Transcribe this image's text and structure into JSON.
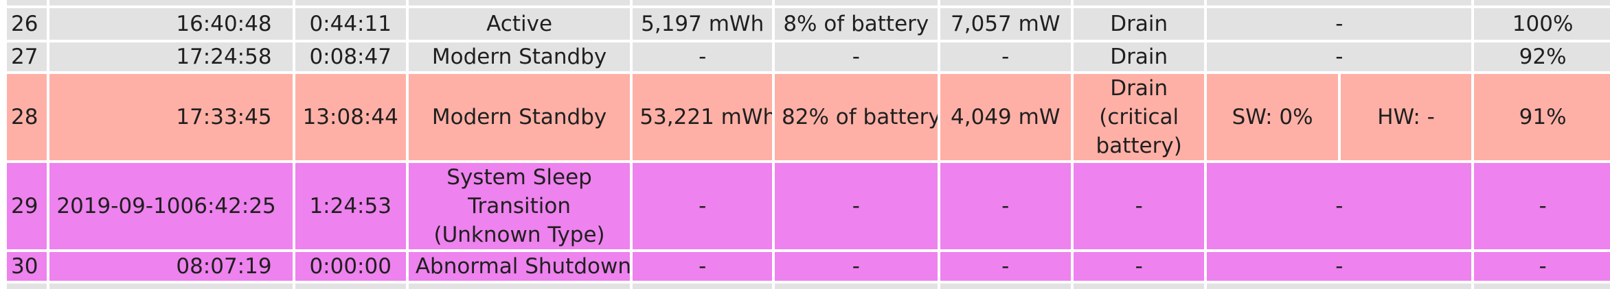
{
  "table": {
    "rows": [
      {
        "index": "26",
        "date": "",
        "time": "16:40:48",
        "duration": "0:44:11",
        "state": "Active",
        "energy": "5,197 mWh",
        "percent": "8% of battery",
        "rate": "7,057 mW",
        "source": "Drain",
        "sw": "-",
        "hw": "",
        "capacity": "100%",
        "color": "#e2e2e2"
      },
      {
        "index": "27",
        "date": "",
        "time": "17:24:58",
        "duration": "0:08:47",
        "state": "Modern Standby",
        "energy": "-",
        "percent": "-",
        "rate": "-",
        "source": "Drain",
        "sw": "-",
        "hw": "",
        "capacity": "92%",
        "color": "#e2e2e2"
      },
      {
        "index": "28",
        "date": "",
        "time": "17:33:45",
        "duration": "13:08:44",
        "state": "Modern Standby",
        "energy": "53,221 mWh",
        "percent": "82% of battery",
        "rate": "4,049 mW",
        "source": "Drain (critical battery)",
        "sw": "SW: 0%",
        "hw": "HW: -",
        "capacity": "91%",
        "color": "#ffb0a6"
      },
      {
        "index": "29",
        "date": "2019-09-10",
        "time": "06:42:25",
        "duration": "1:24:53",
        "state": "System Sleep Transition (Unknown Type)",
        "energy": "-",
        "percent": "-",
        "rate": "-",
        "source": "-",
        "sw": "-",
        "hw": "",
        "capacity": "-",
        "color": "#ee82ee"
      },
      {
        "index": "30",
        "date": "",
        "time": "08:07:19",
        "duration": "0:00:00",
        "state": "Abnormal Shutdown",
        "energy": "-",
        "percent": "-",
        "rate": "-",
        "source": "-",
        "sw": "-",
        "hw": "",
        "capacity": "-",
        "color": "#ee82ee"
      }
    ]
  }
}
